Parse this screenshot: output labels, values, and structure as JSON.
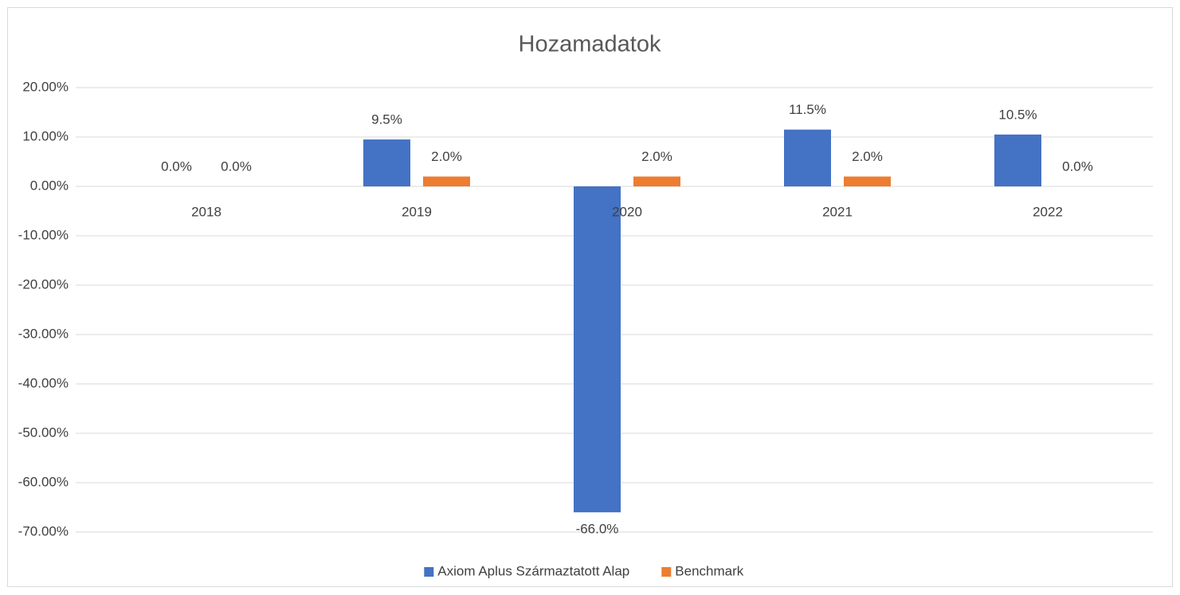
{
  "chart_data": {
    "type": "bar",
    "title": "Hozamadatok",
    "categories": [
      "2018",
      "2019",
      "2020",
      "2021",
      "2022"
    ],
    "series": [
      {
        "name": "Axiom Aplus Származtatott Alap",
        "color": "#4472c4",
        "values": [
          0,
          9.5,
          -66,
          11.5,
          10.5
        ],
        "value_labels": [
          "0.0%",
          "9.5%",
          "-66.0%",
          "11.5%",
          "10.5%"
        ]
      },
      {
        "name": "Benchmark",
        "color": "#ed7d31",
        "values": [
          0,
          2,
          2,
          2,
          0
        ],
        "value_labels": [
          "0.0%",
          "2.0%",
          "2.0%",
          "2.0%",
          "0.0%"
        ]
      }
    ],
    "ylim": [
      -70,
      20
    ],
    "yticks": [
      {
        "value": 20,
        "label": "20.00%"
      },
      {
        "value": 10,
        "label": "10.00%"
      },
      {
        "value": 0,
        "label": "0.00%"
      },
      {
        "value": -10,
        "label": "-10.00%"
      },
      {
        "value": -20,
        "label": "-20.00%"
      },
      {
        "value": -30,
        "label": "-30.00%"
      },
      {
        "value": -40,
        "label": "-40.00%"
      },
      {
        "value": -50,
        "label": "-50.00%"
      },
      {
        "value": -60,
        "label": "-60.00%"
      },
      {
        "value": -70,
        "label": "-70.00%"
      }
    ],
    "grid": true,
    "legend": "bottom"
  }
}
